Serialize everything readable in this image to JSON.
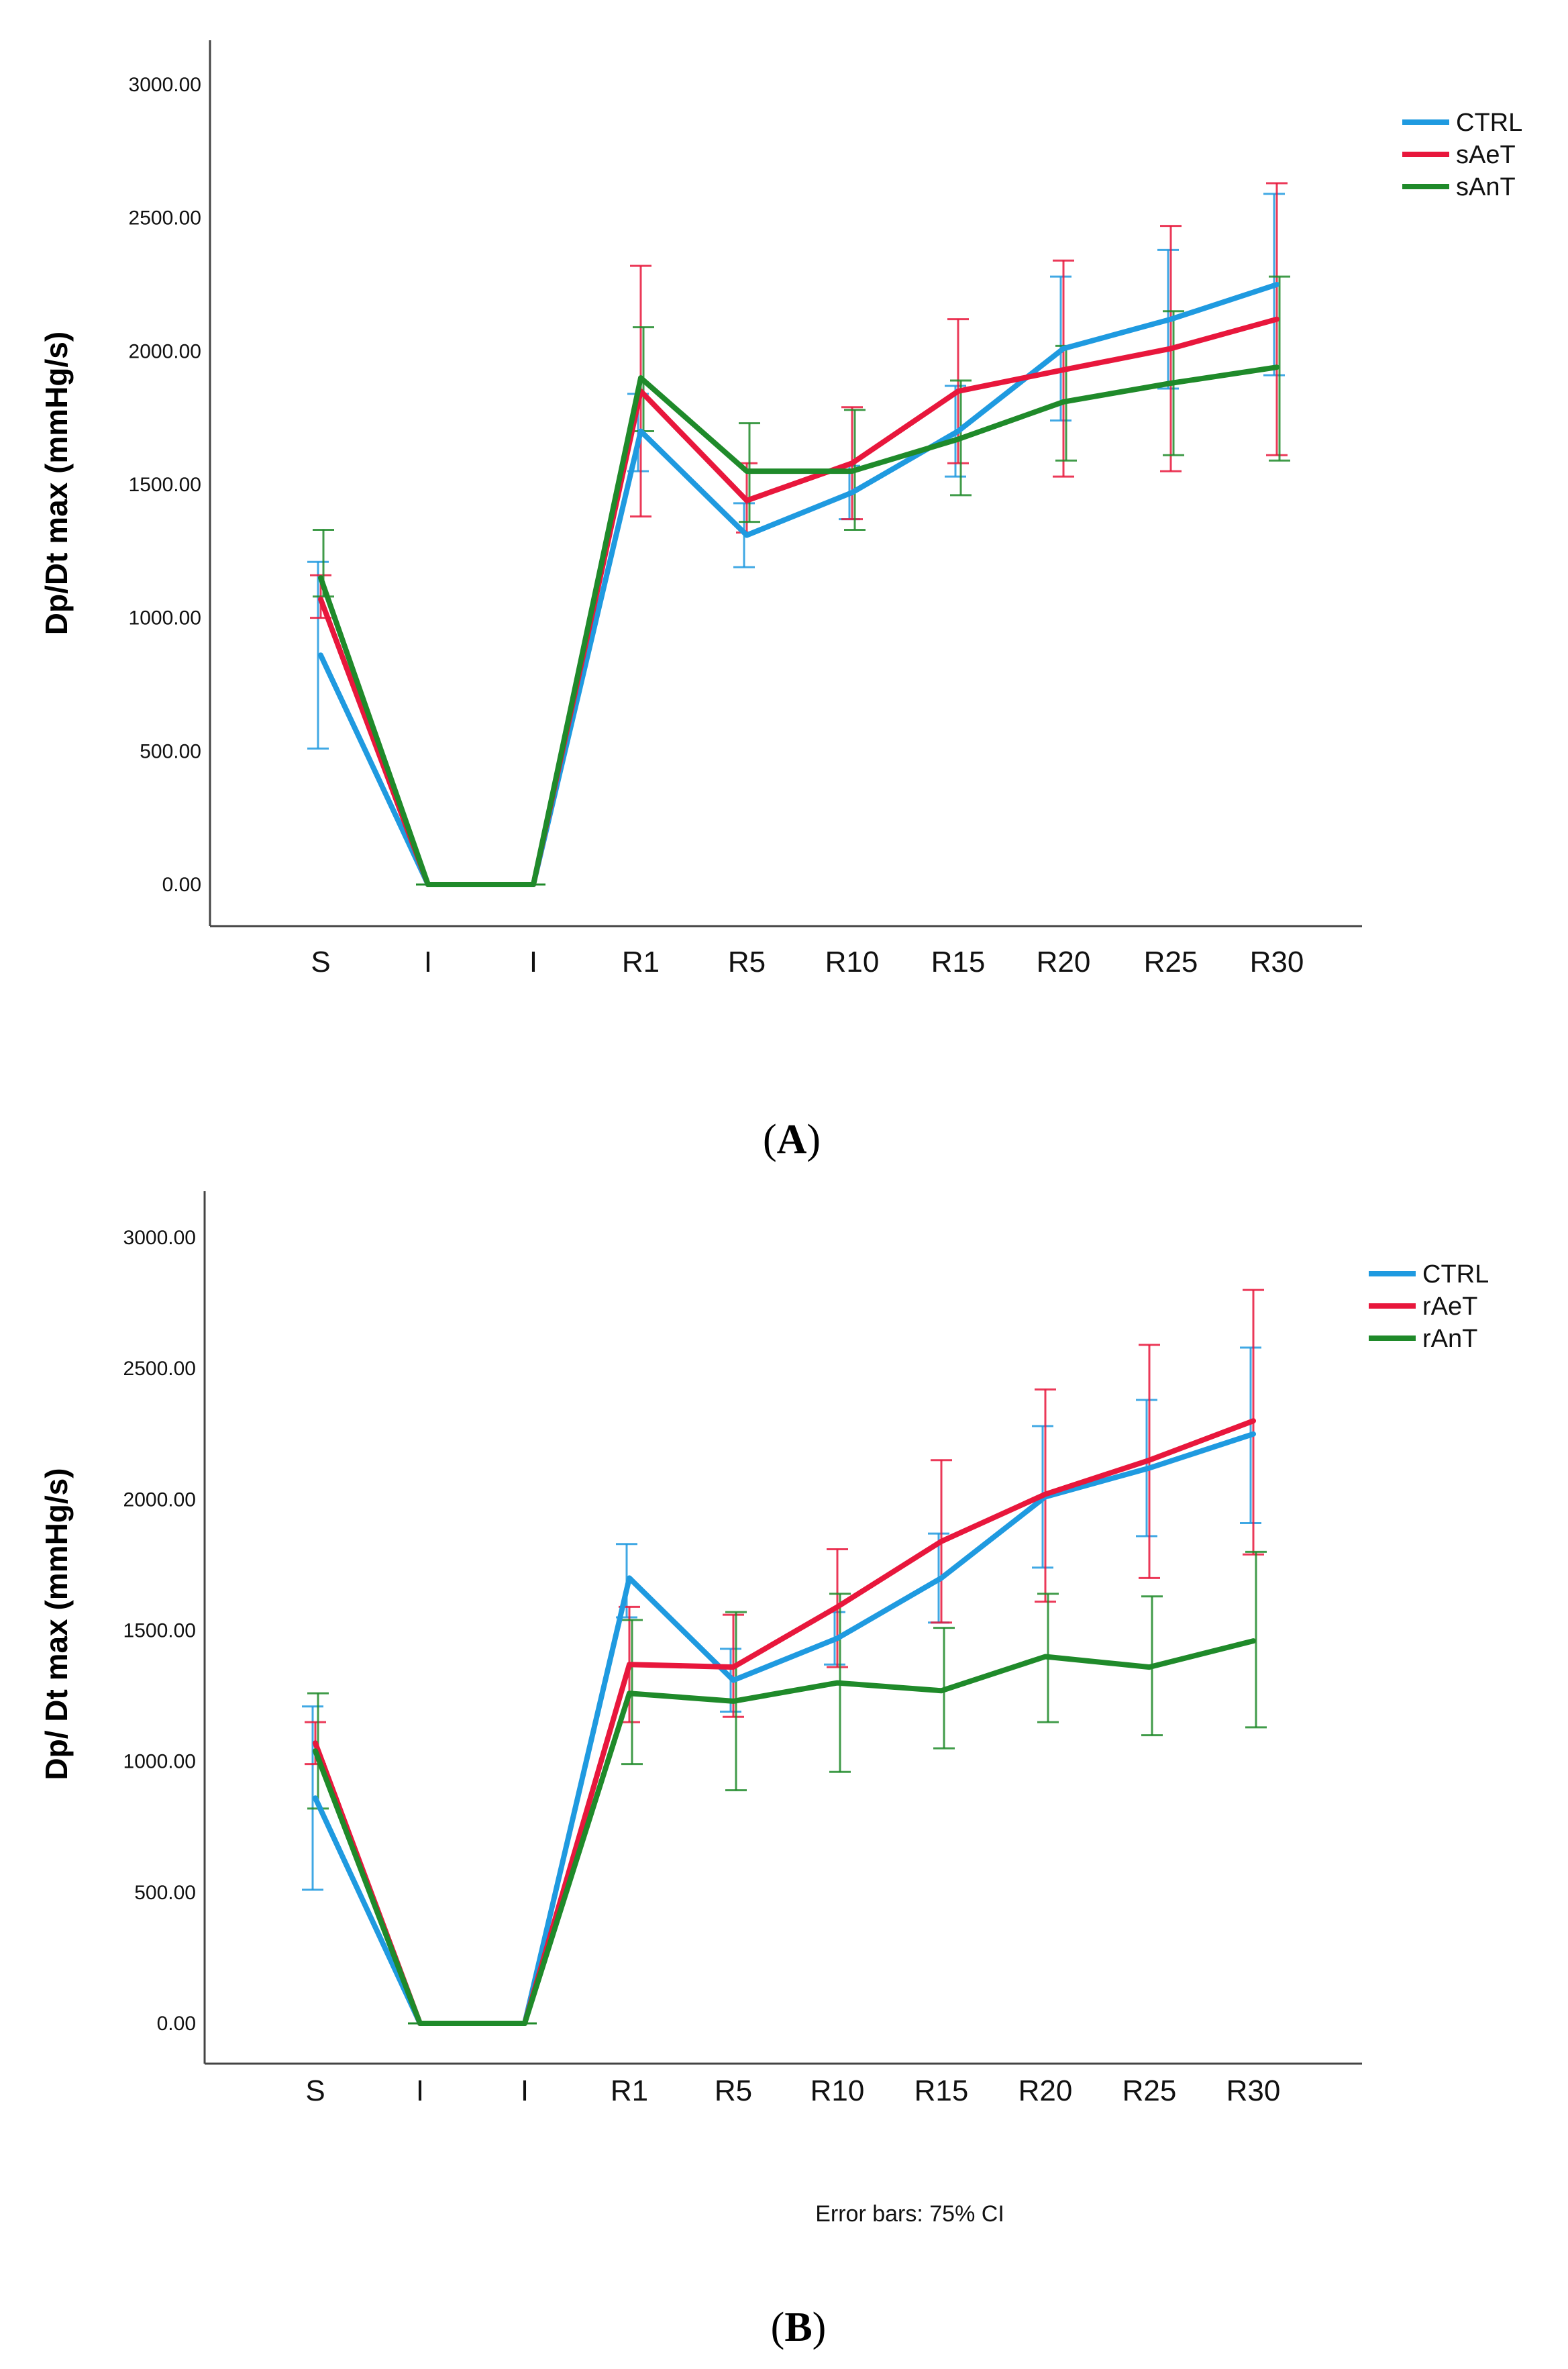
{
  "figure": {
    "panel_labels": [
      "A",
      "B"
    ],
    "footnote": "Error bars: 75% CI"
  },
  "chart_data": [
    {
      "type": "line",
      "panel": "A",
      "categories": [
        "S",
        "I",
        "I",
        "R1",
        "R5",
        "R10",
        "R15",
        "R20",
        "R25",
        "R30"
      ],
      "ylabel": "Dp/Dt max (mmHg/s)",
      "xlabel": "",
      "ylim": [
        0,
        3000
      ],
      "yticks": [
        "0.00",
        "500.00",
        "1000.00",
        "1500.00",
        "2000.00",
        "2500.00",
        "3000.00"
      ],
      "legend_position": "top-right",
      "series": [
        {
          "name": "CTRL",
          "color": "#1f9ae0",
          "values": [
            860,
            0,
            0,
            1700,
            1310,
            1470,
            1700,
            2010,
            2120,
            2250
          ],
          "ci_low": [
            510,
            0,
            0,
            1550,
            1190,
            1370,
            1530,
            1740,
            1860,
            1910
          ],
          "ci_high": [
            1210,
            0,
            0,
            1840,
            1430,
            1570,
            1870,
            2280,
            2380,
            2590
          ]
        },
        {
          "name": "sAeT",
          "color": "#e8173c",
          "values": [
            1070,
            0,
            0,
            1850,
            1440,
            1580,
            1850,
            1930,
            2010,
            2120
          ],
          "ci_low": [
            1000,
            0,
            0,
            1380,
            1320,
            1370,
            1580,
            1530,
            1550,
            1610
          ],
          "ci_high": [
            1160,
            0,
            0,
            2320,
            1580,
            1790,
            2120,
            2340,
            2470,
            2630
          ]
        },
        {
          "name": "sAnT",
          "color": "#1f8a2a",
          "values": [
            1150,
            0,
            0,
            1900,
            1550,
            1550,
            1670,
            1810,
            1880,
            1940
          ],
          "ci_low": [
            1080,
            0,
            0,
            1700,
            1360,
            1330,
            1460,
            1590,
            1610,
            1590
          ],
          "ci_high": [
            1330,
            0,
            0,
            2090,
            1730,
            1780,
            1890,
            2020,
            2150,
            2280
          ]
        }
      ]
    },
    {
      "type": "line",
      "panel": "B",
      "categories": [
        "S",
        "I",
        "I",
        "R1",
        "R5",
        "R10",
        "R15",
        "R20",
        "R25",
        "R30"
      ],
      "ylabel": "Dp/ Dt max (mmHg/s)",
      "xlabel": "",
      "ylim": [
        0,
        3000
      ],
      "yticks": [
        "0.00",
        "500.00",
        "1000.00",
        "1500.00",
        "2000.00",
        "2500.00",
        "3000.00"
      ],
      "legend_position": "top-right",
      "series": [
        {
          "name": "CTRL",
          "color": "#1f9ae0",
          "values": [
            860,
            0,
            0,
            1700,
            1310,
            1470,
            1700,
            2010,
            2120,
            2250
          ],
          "ci_low": [
            510,
            0,
            0,
            1550,
            1190,
            1370,
            1530,
            1740,
            1860,
            1910
          ],
          "ci_high": [
            1210,
            0,
            0,
            1830,
            1430,
            1570,
            1870,
            2280,
            2380,
            2580
          ]
        },
        {
          "name": "rAeT",
          "color": "#e8173c",
          "values": [
            1070,
            0,
            0,
            1370,
            1360,
            1590,
            1840,
            2020,
            2150,
            2300
          ],
          "ci_low": [
            990,
            0,
            0,
            1150,
            1170,
            1360,
            1530,
            1610,
            1700,
            1790
          ],
          "ci_high": [
            1150,
            0,
            0,
            1590,
            1560,
            1810,
            2150,
            2420,
            2590,
            2800
          ]
        },
        {
          "name": "rAnT",
          "color": "#1f8a2a",
          "values": [
            1040,
            0,
            0,
            1260,
            1230,
            1300,
            1270,
            1400,
            1360,
            1460
          ],
          "ci_low": [
            820,
            0,
            0,
            990,
            890,
            960,
            1050,
            1150,
            1100,
            1130
          ],
          "ci_high": [
            1260,
            0,
            0,
            1540,
            1570,
            1640,
            1510,
            1640,
            1630,
            1800
          ]
        }
      ]
    }
  ]
}
